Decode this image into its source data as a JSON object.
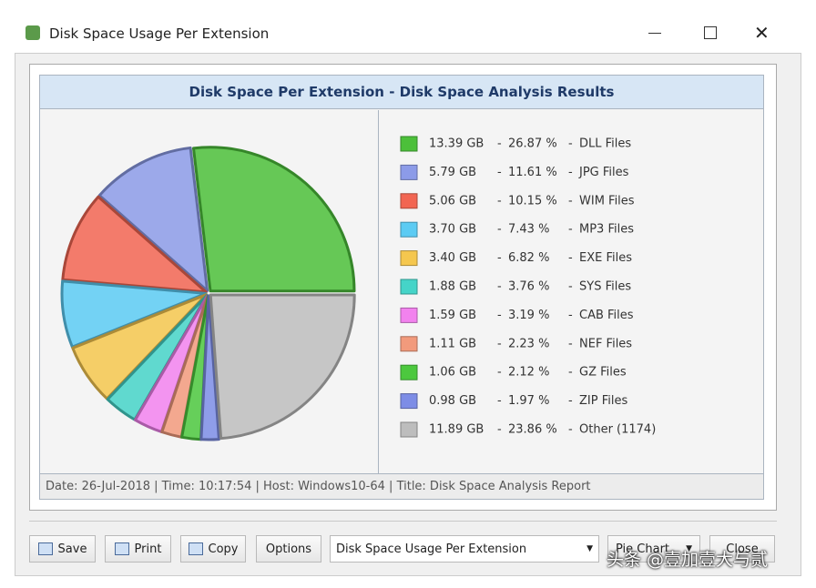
{
  "window": {
    "title": "Disk Space Usage Per Extension"
  },
  "chart_data": {
    "type": "pie",
    "title": "Disk Space Per Extension - Disk Space Analysis Results",
    "categories": [
      "DLL Files",
      "JPG Files",
      "WIM Files",
      "MP3 Files",
      "EXE Files",
      "SYS Files",
      "CAB Files",
      "NEF Files",
      "GZ Files",
      "ZIP Files",
      "Other (1174)"
    ],
    "values": [
      26.87,
      11.61,
      10.15,
      7.43,
      6.82,
      3.76,
      3.19,
      2.23,
      2.12,
      1.97,
      23.86
    ],
    "value_labels": [
      "26.87 %",
      "11.61 %",
      "10.15 %",
      "7.43 %",
      "6.82 %",
      "3.76 %",
      "3.19 %",
      "2.23 %",
      "2.12 %",
      "1.97 %",
      "23.86 %"
    ],
    "size_labels": [
      "13.39 GB",
      "5.79 GB",
      "5.06 GB",
      "3.70 GB",
      "3.40 GB",
      "1.88 GB",
      "1.59 GB",
      "1.11 GB",
      "1.06 GB",
      "0.98 GB",
      "11.89 GB"
    ],
    "separator": "-",
    "colors": [
      "#4cc03a",
      "#8c9be8",
      "#f26552",
      "#5ccbf3",
      "#f5c74e",
      "#45d4c8",
      "#f282ee",
      "#f29a7c",
      "#4cc83e",
      "#7d8de6",
      "#bdbdbd"
    ],
    "footer": "Date: 26-Jul-2018 | Time: 10:17:54 | Host: Windows10-64 | Title: Disk Space Analysis Report"
  },
  "toolbar": {
    "buttons": [
      "Save",
      "Print",
      "Copy",
      "Options"
    ],
    "report_select": "Disk Space Usage Per Extension",
    "chart_select": "Pie Chart",
    "close": "Close"
  },
  "watermark": "头条 @壹加壹大与贰"
}
